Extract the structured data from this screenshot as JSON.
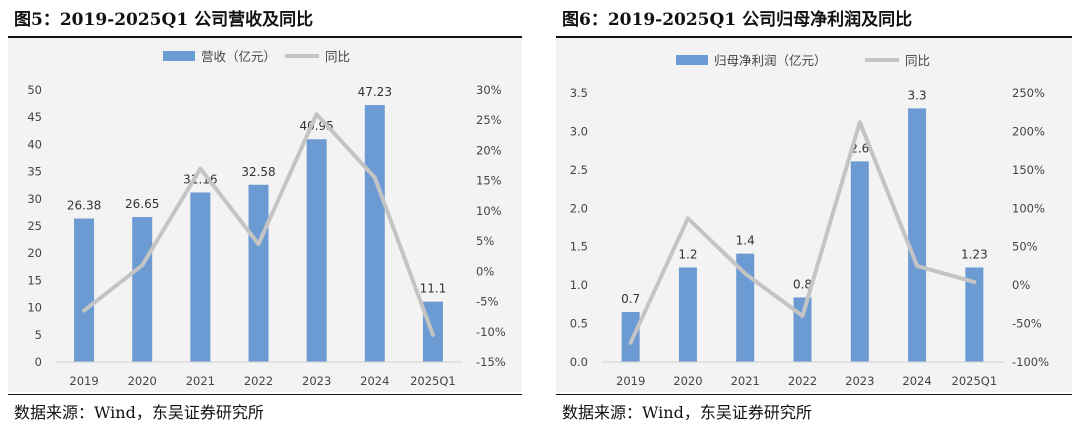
{
  "source": "数据来源：Wind，东吴证券研究所",
  "colors": {
    "bar": "#6b9bd2",
    "line": "#c4c4c4",
    "plot_bg": "#f3f3f3"
  },
  "chart_data": [
    {
      "type": "bar",
      "title": "图5：2019-2025Q1 公司营收及同比",
      "categories": [
        "2019",
        "2020",
        "2021",
        "2022",
        "2023",
        "2024",
        "2025Q1"
      ],
      "series": [
        {
          "name": "营收（亿元）",
          "type": "bar",
          "axis": "left",
          "values": [
            26.38,
            26.65,
            31.16,
            32.58,
            40.95,
            47.23,
            11.1
          ],
          "labels": [
            "26.38",
            "26.65",
            "31.16",
            "32.58",
            "40.95",
            "47.23",
            "11.1"
          ]
        },
        {
          "name": "同比",
          "type": "line",
          "axis": "right",
          "values": [
            -6.5,
            1.0,
            17.0,
            4.5,
            26.0,
            15.5,
            -10.5
          ]
        }
      ],
      "y_left": {
        "min": 0,
        "max": 50,
        "ticks": [
          "0",
          "5",
          "10",
          "15",
          "20",
          "25",
          "30",
          "35",
          "40",
          "45",
          "50"
        ]
      },
      "y_right": {
        "min": -15,
        "max": 30,
        "ticks": [
          "-15%",
          "-10%",
          "-5%",
          "0%",
          "5%",
          "10%",
          "15%",
          "20%",
          "25%",
          "30%"
        ]
      },
      "legend": "top-center",
      "grid": false
    },
    {
      "type": "bar",
      "title": "图6：2019-2025Q1 公司归母净利润及同比",
      "categories": [
        "2019",
        "2020",
        "2021",
        "2022",
        "2023",
        "2024",
        "2025Q1"
      ],
      "series": [
        {
          "name": "归母净利润（亿元）",
          "type": "bar",
          "axis": "left",
          "values": [
            0.65,
            1.23,
            1.41,
            0.84,
            2.61,
            3.3,
            1.23
          ],
          "labels": [
            "0.7",
            "1.2",
            "1.4",
            "0.8",
            "2.6",
            "3.3",
            "1.23"
          ]
        },
        {
          "name": "同比",
          "type": "line",
          "axis": "right",
          "values": [
            -75,
            87,
            15,
            -40,
            212,
            25,
            4
          ]
        }
      ],
      "y_left": {
        "min": 0,
        "max": 3.5,
        "ticks": [
          "0.0",
          "0.5",
          "1.0",
          "1.5",
          "2.0",
          "2.5",
          "3.0",
          "3.5"
        ]
      },
      "y_right": {
        "min": -100,
        "max": 250,
        "ticks": [
          "-100%",
          "-50%",
          "0%",
          "50%",
          "100%",
          "150%",
          "200%",
          "250%"
        ]
      },
      "legend": "top-center",
      "grid": false
    }
  ]
}
